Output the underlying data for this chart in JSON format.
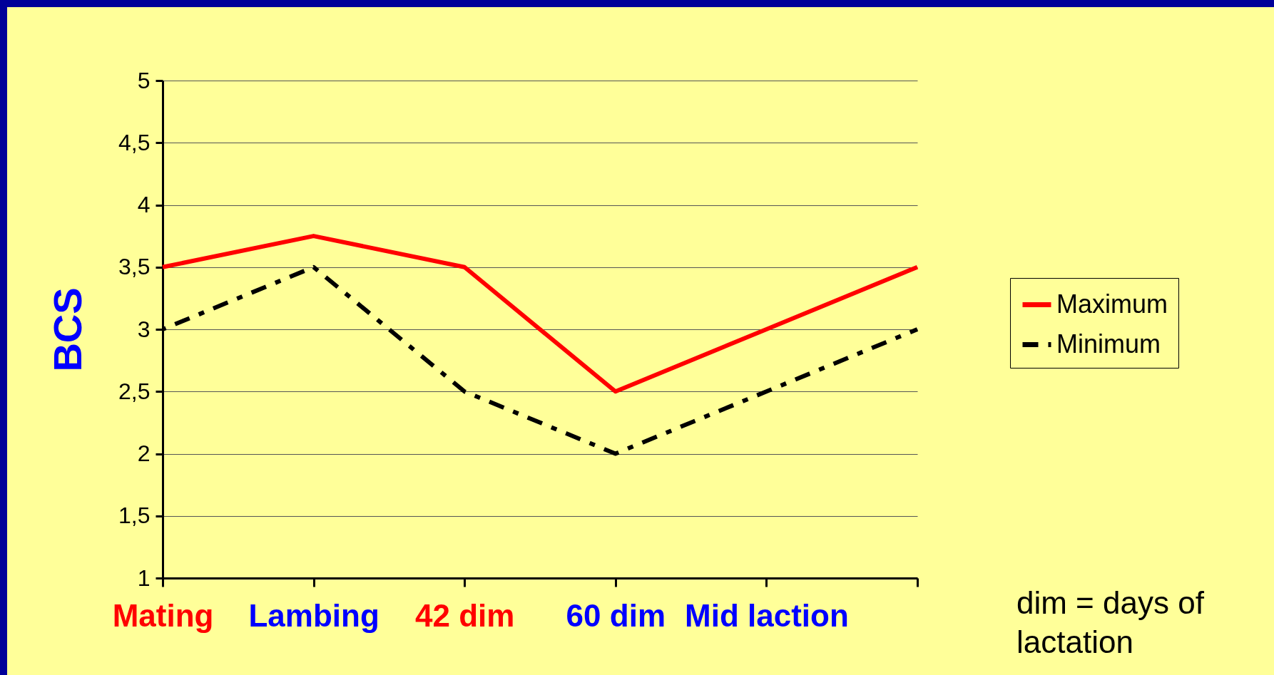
{
  "chart_data": {
    "type": "line",
    "ylabel": "BCS",
    "categories": [
      "Mating",
      "Lambing",
      "42 dim",
      "60 dim",
      "Mid laction",
      null
    ],
    "series": [
      {
        "name": "Maximum",
        "color": "#ff0000",
        "line_style": "solid",
        "values": [
          3.5,
          3.75,
          3.5,
          2.5,
          3,
          3.5
        ]
      },
      {
        "name": "Minimum",
        "color": "#000000",
        "line_style": "dashdot",
        "values": [
          3,
          3.5,
          2.5,
          2,
          2.5,
          3
        ]
      }
    ],
    "ylim": [
      1,
      5
    ],
    "yticks": [
      1,
      {
        "value": 1.5,
        "label": "1,5"
      },
      2,
      {
        "value": 2.5,
        "label": "2,5"
      },
      3,
      {
        "value": 3.5,
        "label": "3,5"
      },
      4,
      {
        "value": 4.5,
        "label": "4,5"
      },
      5
    ],
    "grid": "y",
    "legend": "right",
    "marker": "none",
    "annotations": [
      "dim = days of lactation"
    ]
  }
}
